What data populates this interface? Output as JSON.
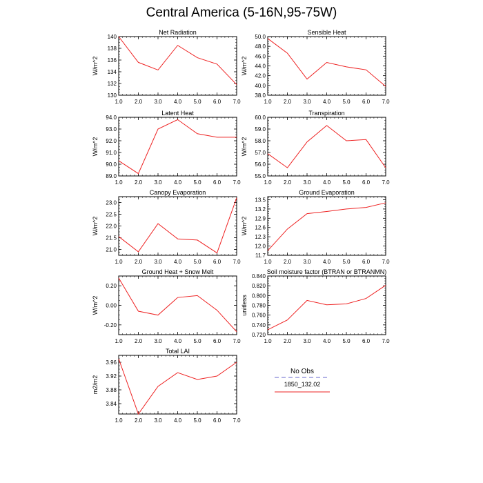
{
  "title": "Central America (5-16N,95-75W)",
  "legend": {
    "entries": [
      {
        "label": "No Obs",
        "color": "#9999dd",
        "style": "dashed"
      },
      {
        "label": "1850_132.02",
        "color": "#ee2222",
        "style": "solid"
      }
    ]
  },
  "line_color": "#ee2222",
  "chart_data": [
    {
      "type": "line",
      "title": "Net Radiation",
      "ylabel": "W/m^2",
      "x": [
        1,
        2,
        3,
        4,
        5,
        6,
        7
      ],
      "xticks": [
        "1.0",
        "2.0",
        "3.0",
        "4.0",
        "5.0",
        "6.0",
        "7.0"
      ],
      "xlim": [
        1,
        7
      ],
      "ylim": [
        130,
        140
      ],
      "yticks": [
        "130",
        "132",
        "134",
        "136",
        "138",
        "140"
      ],
      "series": [
        {
          "values": [
            140.0,
            135.6,
            134.3,
            138.5,
            136.4,
            135.3,
            131.8
          ]
        }
      ]
    },
    {
      "type": "line",
      "title": "Sensible Heat",
      "ylabel": "W/m^2",
      "x": [
        1,
        2,
        3,
        4,
        5,
        6,
        7
      ],
      "xticks": [
        "1.0",
        "2.0",
        "3.0",
        "4.0",
        "5.0",
        "6.0",
        "7.0"
      ],
      "xlim": [
        1,
        7
      ],
      "ylim": [
        38,
        50
      ],
      "yticks": [
        "38.0",
        "40.0",
        "42.0",
        "44.0",
        "46.0",
        "48.0",
        "50.0"
      ],
      "series": [
        {
          "values": [
            49.6,
            46.6,
            41.3,
            44.7,
            43.8,
            43.2,
            39.8
          ]
        }
      ]
    },
    {
      "type": "line",
      "title": "Latent Heat",
      "ylabel": "W/m^2",
      "x": [
        1,
        2,
        3,
        4,
        5,
        6,
        7
      ],
      "xticks": [
        "1.0",
        "2.0",
        "3.0",
        "4.0",
        "5.0",
        "6.0",
        "7.0"
      ],
      "xlim": [
        1,
        7
      ],
      "ylim": [
        89,
        94
      ],
      "yticks": [
        "89.0",
        "90.0",
        "91.0",
        "92.0",
        "93.0",
        "94.0"
      ],
      "series": [
        {
          "values": [
            90.3,
            89.2,
            93.0,
            93.8,
            92.6,
            92.3,
            92.3
          ]
        }
      ]
    },
    {
      "type": "line",
      "title": "Transpiration",
      "ylabel": "W/m^2",
      "x": [
        1,
        2,
        3,
        4,
        5,
        6,
        7
      ],
      "xticks": [
        "1.0",
        "2.0",
        "3.0",
        "4.0",
        "5.0",
        "6.0",
        "7.0"
      ],
      "xlim": [
        1,
        7
      ],
      "ylim": [
        55,
        60
      ],
      "yticks": [
        "55.0",
        "56.0",
        "57.0",
        "58.0",
        "59.0",
        "60.0"
      ],
      "series": [
        {
          "values": [
            56.9,
            55.7,
            57.9,
            59.3,
            58.0,
            58.1,
            55.7
          ]
        }
      ]
    },
    {
      "type": "line",
      "title": "Canopy Evaporation",
      "ylabel": "W/m^2",
      "x": [
        1,
        2,
        3,
        4,
        5,
        6,
        7
      ],
      "xticks": [
        "1.0",
        "2.0",
        "3.0",
        "4.0",
        "5.0",
        "6.0",
        "7.0"
      ],
      "xlim": [
        1,
        7
      ],
      "ylim": [
        20.75,
        23.25
      ],
      "yticks": [
        "21.0",
        "21.5",
        "22.0",
        "22.5",
        "23.0"
      ],
      "series": [
        {
          "values": [
            21.55,
            20.9,
            22.1,
            21.45,
            21.4,
            20.85,
            23.2
          ]
        }
      ]
    },
    {
      "type": "line",
      "title": "Ground Evaporation",
      "ylabel": "W/m^2",
      "x": [
        1,
        2,
        3,
        4,
        5,
        6,
        7
      ],
      "xticks": [
        "1.0",
        "2.0",
        "3.0",
        "4.0",
        "5.0",
        "6.0",
        "7.0"
      ],
      "xlim": [
        1,
        7
      ],
      "ylim": [
        11.7,
        13.6
      ],
      "yticks": [
        "11.7",
        "12.0",
        "12.3",
        "12.6",
        "12.9",
        "13.2",
        "13.5"
      ],
      "series": [
        {
          "values": [
            11.85,
            12.55,
            13.05,
            13.12,
            13.2,
            13.25,
            13.4
          ]
        }
      ]
    },
    {
      "type": "line",
      "title": "Ground Heat + Snow Melt",
      "ylabel": "W/m^2",
      "x": [
        1,
        2,
        3,
        4,
        5,
        6,
        7
      ],
      "xticks": [
        "1.0",
        "2.0",
        "3.0",
        "4.0",
        "5.0",
        "6.0",
        "7.0"
      ],
      "xlim": [
        1,
        7
      ],
      "ylim": [
        -0.3,
        0.3
      ],
      "yticks": [
        "-0.20",
        "0.00",
        "0.20"
      ],
      "ytick_values": [
        -0.2,
        0.0,
        0.2
      ],
      "series": [
        {
          "values": [
            0.28,
            -0.06,
            -0.1,
            0.08,
            0.1,
            -0.05,
            -0.27
          ]
        }
      ]
    },
    {
      "type": "line",
      "title": "Soil moisture factor (BTRAN or BTRANMN)",
      "ylabel": "unitless",
      "x": [
        1,
        2,
        3,
        4,
        5,
        6,
        7
      ],
      "xticks": [
        "1.0",
        "2.0",
        "3.0",
        "4.0",
        "5.0",
        "6.0",
        "7.0"
      ],
      "xlim": [
        1,
        7
      ],
      "ylim": [
        0.72,
        0.84
      ],
      "yticks": [
        "0.720",
        "0.740",
        "0.760",
        "0.780",
        "0.800",
        "0.820",
        "0.840"
      ],
      "series": [
        {
          "values": [
            0.73,
            0.75,
            0.79,
            0.781,
            0.783,
            0.794,
            0.821
          ]
        }
      ]
    },
    {
      "type": "line",
      "title": "Total LAI",
      "ylabel": "m2/m2",
      "x": [
        1,
        2,
        3,
        4,
        5,
        6,
        7
      ],
      "xticks": [
        "1.0",
        "2.0",
        "3.0",
        "4.0",
        "5.0",
        "6.0",
        "7.0"
      ],
      "xlim": [
        1,
        7
      ],
      "ylim": [
        3.81,
        3.98
      ],
      "yticks": [
        "3.84",
        "3.88",
        "3.92",
        "3.96"
      ],
      "ytick_values": [
        3.84,
        3.88,
        3.92,
        3.96
      ],
      "series": [
        {
          "values": [
            3.97,
            3.81,
            3.89,
            3.93,
            3.91,
            3.92,
            3.96
          ]
        }
      ]
    }
  ]
}
